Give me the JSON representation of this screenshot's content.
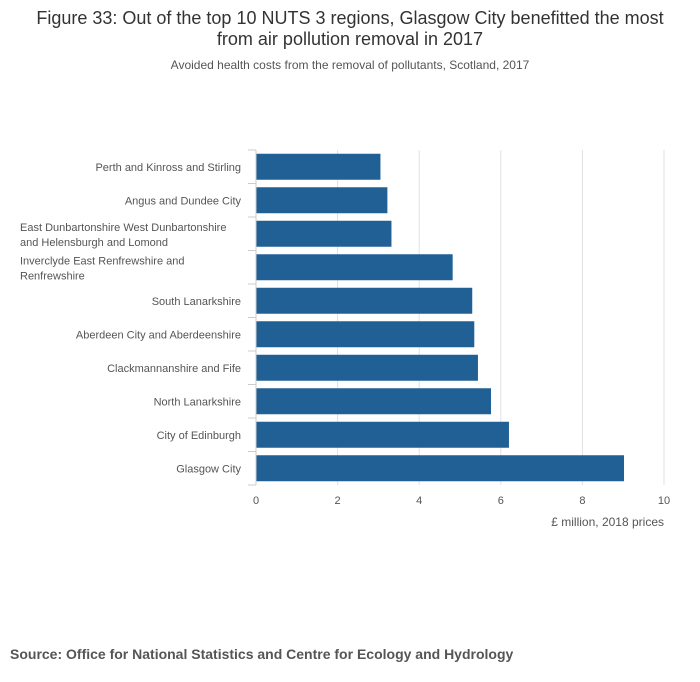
{
  "title": "Figure 33: Out of the top 10 NUTS 3 regions, Glasgow City benefitted the most from air pollution removal in 2017",
  "subtitle": "Avoided health costs from the removal of pollutants, Scotland, 2017",
  "source": "Source: Office for National Statistics and Centre for Ecology and Hydrology",
  "colors": {
    "bar": "#206095",
    "grid": "#e0e0e0",
    "axis": "#cccccc",
    "text": "#555555"
  },
  "chart_data": {
    "type": "bar",
    "orientation": "horizontal",
    "categories": [
      [
        "Perth and Kinross and Stirling"
      ],
      [
        "Angus and Dundee City"
      ],
      [
        "East Dunbartonshire West Dunbartonshire",
        "and Helensburgh and Lomond"
      ],
      [
        "Inverclyde East Renfrewshire and",
        "Renfrewshire"
      ],
      [
        "South Lanarkshire"
      ],
      [
        "Aberdeen City and Aberdeenshire"
      ],
      [
        "Clackmannanshire and Fife"
      ],
      [
        "North Lanarkshire"
      ],
      [
        "City of Edinburgh"
      ],
      [
        "Glasgow City"
      ]
    ],
    "values": [
      3.05,
      3.22,
      3.32,
      4.82,
      5.3,
      5.35,
      5.44,
      5.76,
      6.2,
      9.02
    ],
    "xlim": [
      0,
      10
    ],
    "xticks": [
      0,
      2,
      4,
      6,
      8,
      10
    ],
    "xlabel": "£ million, 2018 prices",
    "ylabel": "",
    "grid": true
  }
}
